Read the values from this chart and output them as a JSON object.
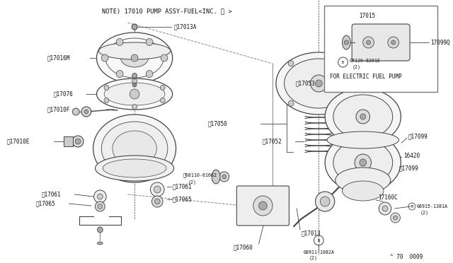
{
  "bg_color": "#f0f0eb",
  "line_color": "#444444",
  "text_color": "#111111",
  "note_text": "NOTE) 17010 PUMP ASSY-FUEL<INC. ※ >",
  "footer": "^ 70  0009",
  "inset_label": "FOR ELECTRIC FUEL PUMP",
  "fs_main": 6.0,
  "fs_small": 5.5,
  "fs_tiny": 4.8
}
